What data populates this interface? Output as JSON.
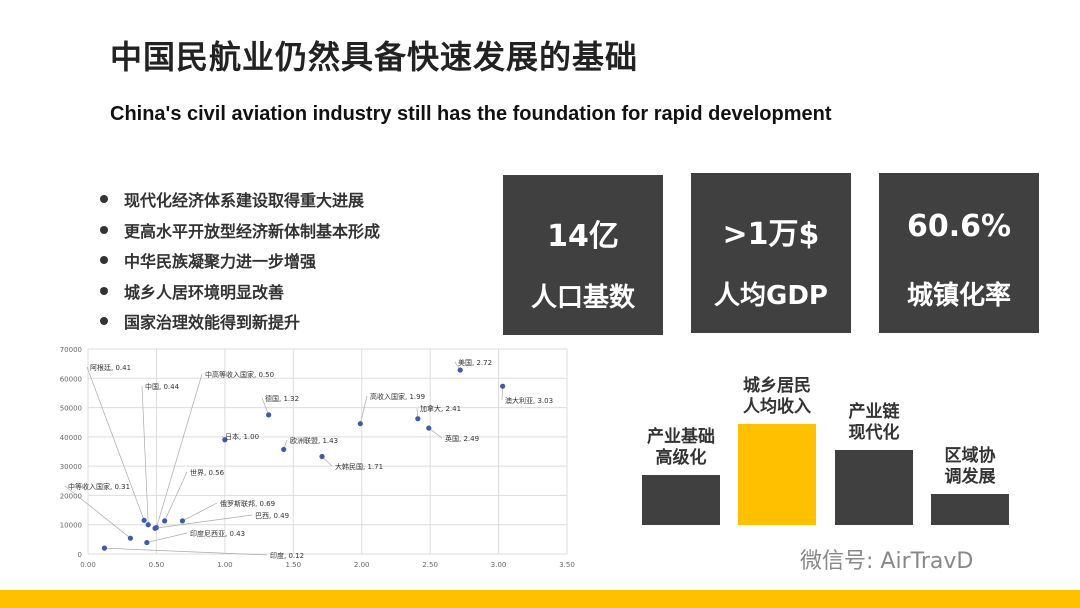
{
  "title": "中国民航业仍然具备快速发展的基础",
  "subtitle": "China's civil aviation industry still has the foundation for rapid development",
  "bullets": [
    "现代化经济体系建设取得重大进展",
    "更高水平开放型经济新体制基本形成",
    "中华民族凝聚力进一步增强",
    "城乡人居环境明显改善",
    "国家治理效能得到新提升"
  ],
  "stats": [
    {
      "value": "14亿",
      "label": "人口基数"
    },
    {
      "value": ">1万$",
      "label": "人均GDP"
    },
    {
      "value": "60.6%",
      "label": "城镇化率"
    }
  ],
  "bars": {
    "labels": [
      "产业基础\n高级化",
      "城乡居民\n人均收入",
      "产业链\n现代化",
      "区域协\n调发展"
    ],
    "relative_heights": [
      50,
      101,
      75,
      31
    ],
    "highlight_index": 1,
    "highlight_color": "#FFC000",
    "base_color": "#404040"
  },
  "watermark": "微信号: AirTravD",
  "accent": "#FFC000",
  "chart_data": {
    "type": "scatter",
    "xlim": [
      0,
      3.5
    ],
    "ylim": [
      0,
      70000
    ],
    "xticks": [
      "0.00",
      "0.50",
      "1.00",
      "1.50",
      "2.00",
      "2.50",
      "3.00",
      "3.50"
    ],
    "yticks": [
      "0",
      "10000",
      "20000",
      "30000",
      "40000",
      "50000",
      "60000",
      "70000"
    ],
    "points": [
      {
        "label": "阿根廷, 0.41",
        "x": 0.41,
        "y": 11500
      },
      {
        "label": "中国, 0.44",
        "x": 0.44,
        "y": 10000
      },
      {
        "label": "中高等收入国家, 0.50",
        "x": 0.5,
        "y": 9000
      },
      {
        "label": "世界, 0.56",
        "x": 0.56,
        "y": 11300
      },
      {
        "label": "中等收入国家, 0.31",
        "x": 0.31,
        "y": 5400
      },
      {
        "label": "俄罗斯联邦, 0.69",
        "x": 0.69,
        "y": 11300
      },
      {
        "label": "巴西, 0.49",
        "x": 0.49,
        "y": 8800
      },
      {
        "label": "印度尼西亚, 0.43",
        "x": 0.43,
        "y": 3900
      },
      {
        "label": "印度, 0.12",
        "x": 0.12,
        "y": 2000
      },
      {
        "label": "日本, 1.00",
        "x": 1.0,
        "y": 39000
      },
      {
        "label": "德国, 1.32",
        "x": 1.32,
        "y": 47500
      },
      {
        "label": "欧洲联盟, 1.43",
        "x": 1.43,
        "y": 35700
      },
      {
        "label": "大韩民国, 1.71",
        "x": 1.71,
        "y": 33300
      },
      {
        "label": "高收入国家, 1.99",
        "x": 1.99,
        "y": 44500
      },
      {
        "label": "加拿大, 2.41",
        "x": 2.41,
        "y": 46200
      },
      {
        "label": "英国, 2.49",
        "x": 2.49,
        "y": 43000
      },
      {
        "label": "美国, 2.72",
        "x": 2.72,
        "y": 62800
      },
      {
        "label": "澳大利亚, 3.03",
        "x": 3.03,
        "y": 57300
      }
    ]
  }
}
